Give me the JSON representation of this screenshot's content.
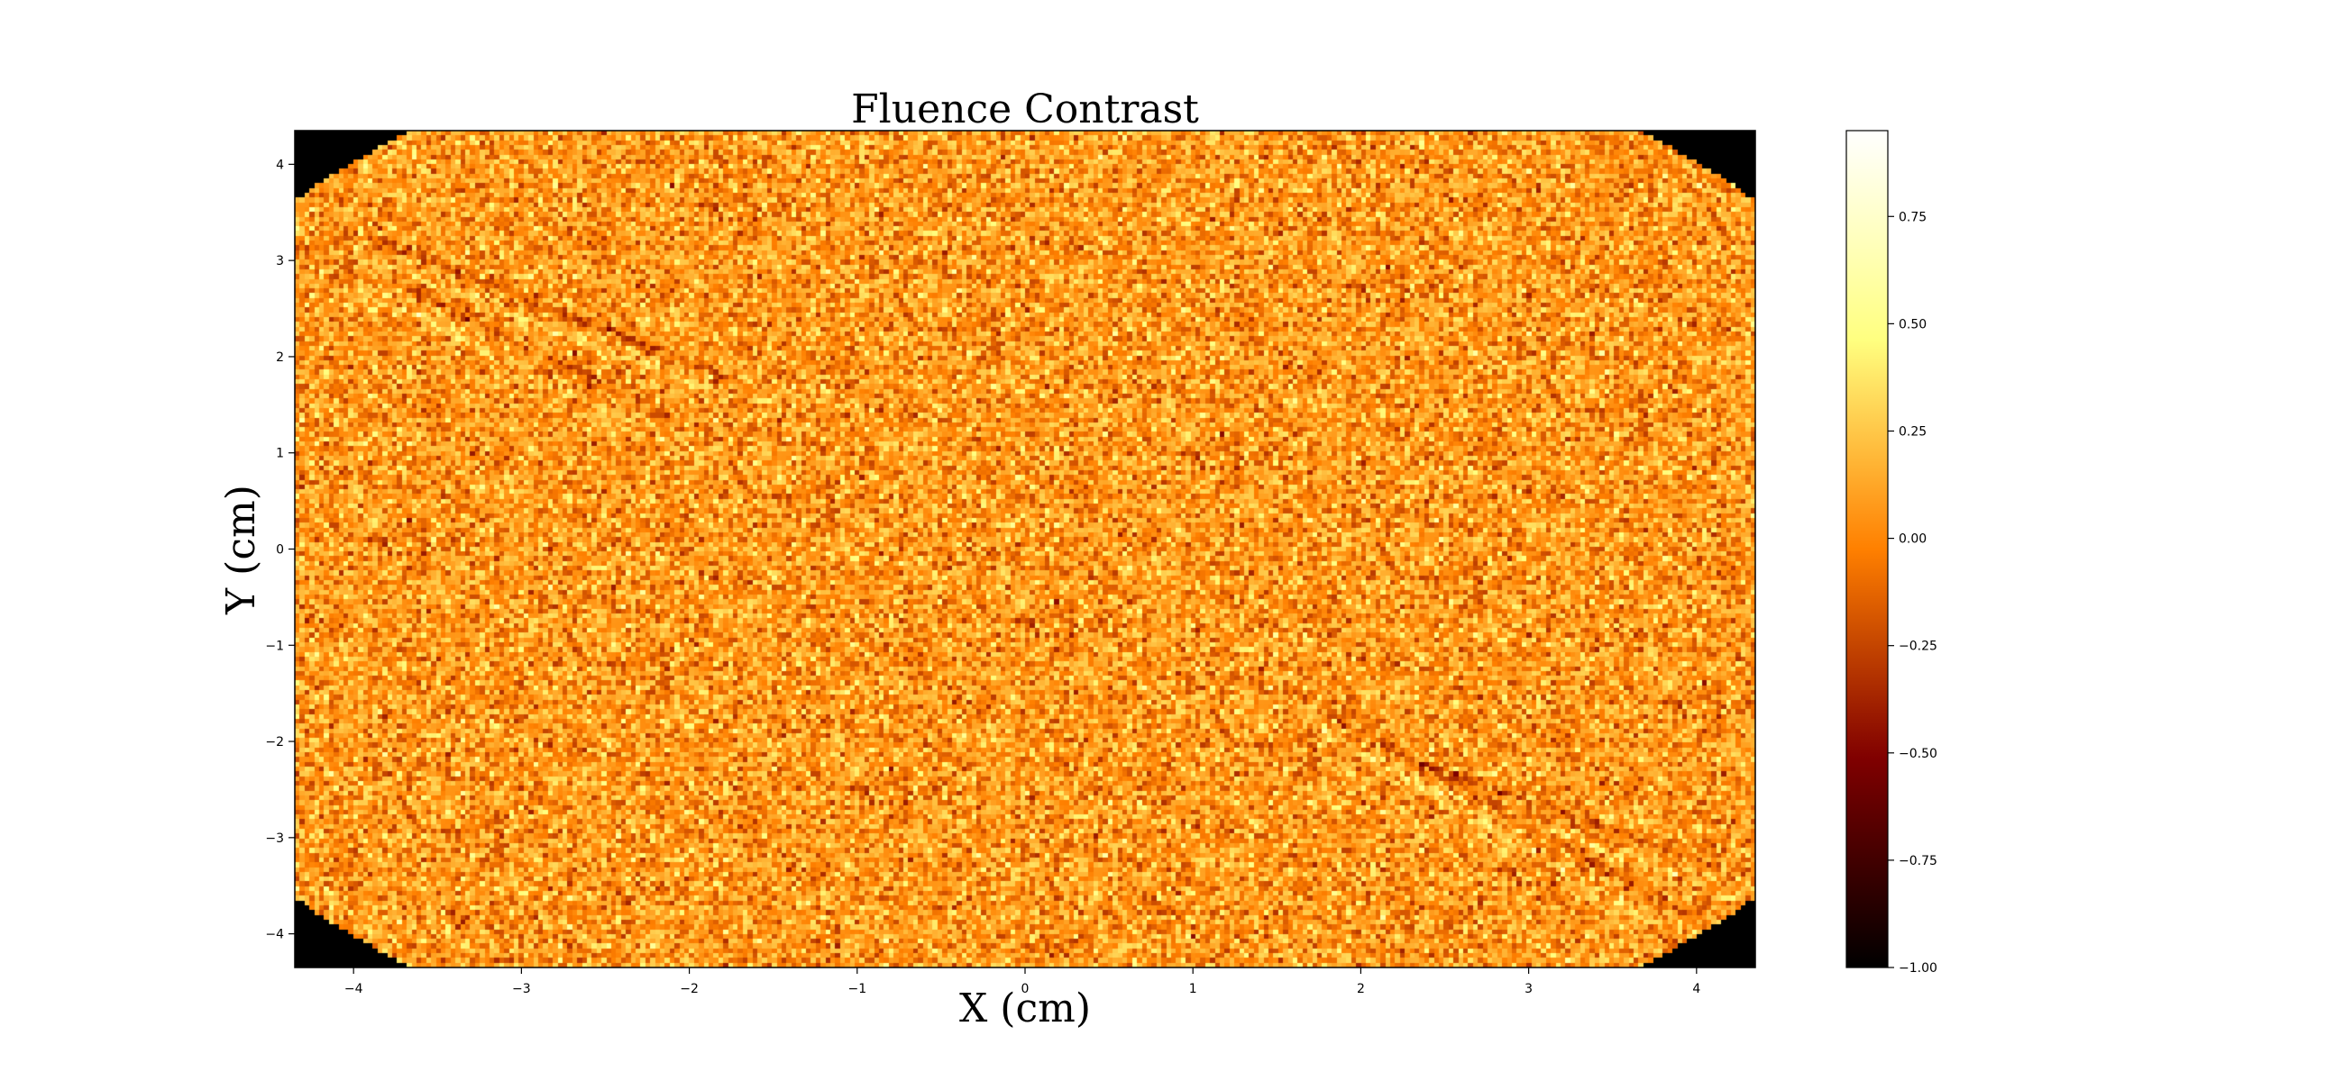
{
  "chart_data": {
    "type": "heatmap",
    "title": "Fluence Contrast",
    "xlabel": "X (cm)",
    "ylabel": "Y (cm)",
    "xlim": [
      -4.35,
      4.35
    ],
    "ylim": [
      -4.35,
      4.35
    ],
    "x_ticks": [
      -4,
      -3,
      -2,
      -1,
      0,
      1,
      2,
      3,
      4
    ],
    "x_tick_labels": [
      "−4",
      "−3",
      "−2",
      "−1",
      "0",
      "1",
      "2",
      "3",
      "4"
    ],
    "y_ticks": [
      -4,
      -3,
      -2,
      -1,
      0,
      1,
      2,
      3,
      4
    ],
    "y_tick_labels": [
      "−4",
      "−3",
      "−2",
      "−1",
      "0",
      "1",
      "2",
      "3",
      "4"
    ],
    "colormap": "afmhot",
    "colorbar": {
      "range": [
        -1.0,
        0.95
      ],
      "ticks": [
        -1.0,
        -0.75,
        -0.5,
        -0.25,
        0.0,
        0.25,
        0.5,
        0.75
      ],
      "tick_labels": [
        "−1.00",
        "−0.75",
        "−0.50",
        "−0.25",
        "0.00",
        "0.25",
        "0.50",
        "0.75"
      ]
    },
    "field": {
      "shape": "ellipse",
      "center": [
        0,
        0
      ],
      "semi_axes": [
        5.6,
        5.75
      ],
      "outside_value": -1.0,
      "background_mean": 0.08,
      "background_noise": 0.18
    },
    "streaks": [
      {
        "from": [
          -4.0,
          3.2
        ],
        "to": [
          -1.8,
          1.7
        ],
        "dark_offset": 0.09
      },
      {
        "from": [
          -3.9,
          2.8
        ],
        "to": [
          -2.2,
          1.3
        ],
        "dark_offset": 0.09
      },
      {
        "from": [
          1.7,
          -1.7
        ],
        "to": [
          3.9,
          -3.9
        ],
        "dark_offset": 0.09
      },
      {
        "from": [
          2.3,
          -2.3
        ],
        "to": [
          4.1,
          -3.4
        ],
        "dark_offset": 0.09
      }
    ]
  }
}
